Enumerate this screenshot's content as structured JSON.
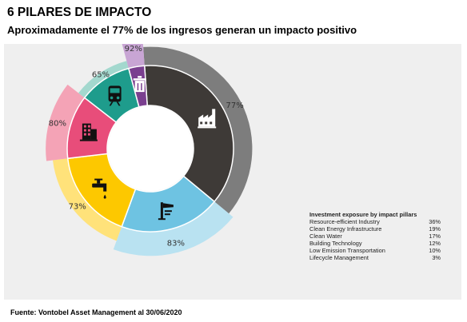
{
  "header": {
    "title": "6 PILARES DE IMPACTO",
    "subtitle": "Aproximadamente el 77% de los ingresos generan un impacto positivo"
  },
  "footer": {
    "source": "Fuente: Vontobel Asset Management al 30/06/2020"
  },
  "chart_data": {
    "type": "pie",
    "subtype": "double-ring donut",
    "legend": {
      "title": "Investment exposure by impact pillars",
      "placement": "right",
      "entries": [
        {
          "label": "Resource-efficient Industry",
          "value_label": "36%"
        },
        {
          "label": "Clean Energy Infrastructure",
          "value_label": "19%"
        },
        {
          "label": "Clean Water",
          "value_label": "17%"
        },
        {
          "label": "Building Technology",
          "value_label": "12%"
        },
        {
          "label": "Low Emission Transportation",
          "value_label": "10%"
        },
        {
          "label": "Lifecycle Management",
          "value_label": "3%"
        }
      ]
    },
    "slices": [
      {
        "pillar": "Resource-efficient Industry",
        "exposure": 36,
        "impact_label": "77%",
        "impact": 77,
        "icon": "factory-icon",
        "inner_color": "#3e3a37",
        "outer_color": "#7d7d7d"
      },
      {
        "pillar": "Clean Energy Infrastructure",
        "exposure": 19,
        "impact_label": "83%",
        "impact": 83,
        "icon": "wind-turbine-icon",
        "inner_color": "#6ec3e2",
        "outer_color": "#b9e2f1"
      },
      {
        "pillar": "Clean Water",
        "exposure": 17,
        "impact_label": "73%",
        "impact": 73,
        "icon": "water-tap-icon",
        "inner_color": "#fdc800",
        "outer_color": "#ffe27a"
      },
      {
        "pillar": "Building Technology",
        "exposure": 12,
        "impact_label": "80%",
        "impact": 80,
        "icon": "building-icon",
        "inner_color": "#e84d7a",
        "outer_color": "#f4a3b6"
      },
      {
        "pillar": "Low Emission Transportation",
        "exposure": 10,
        "impact_label": "65%",
        "impact": 65,
        "icon": "train-icon",
        "inner_color": "#1e9c8c",
        "outer_color": "#a3d8ce"
      },
      {
        "pillar": "Lifecycle Management",
        "exposure": 3,
        "impact_label": "92%",
        "impact": 92,
        "icon": "recycle-bin-icon",
        "inner_color": "#7a3f8f",
        "outer_color": "#c8a5d4"
      }
    ]
  }
}
